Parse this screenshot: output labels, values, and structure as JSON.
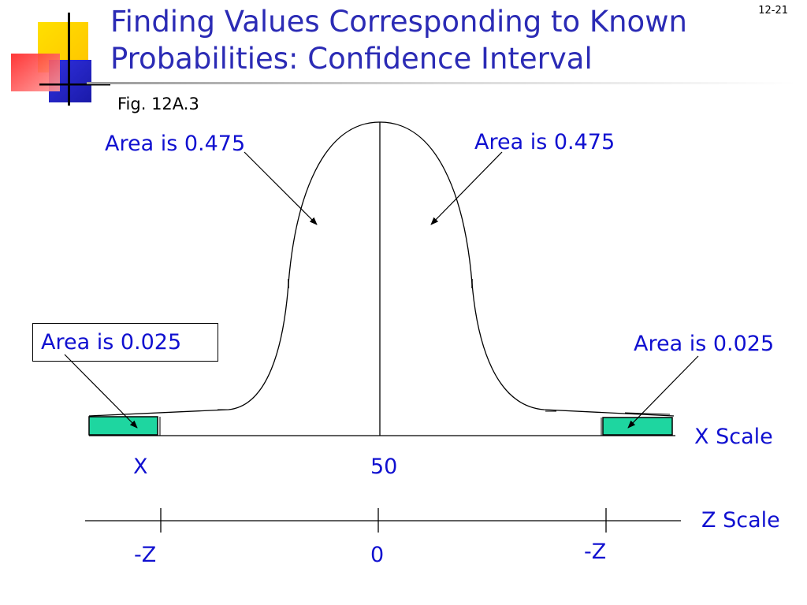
{
  "page_number": "12-21",
  "title": {
    "line1": "Finding Values Corresponding to Known",
    "line2": "Probabilities: Confidence Interval"
  },
  "figure_label": "Fig. 12A.3",
  "labels": {
    "area_left_center": "Area is 0.475",
    "area_right_center": "Area is 0.475",
    "area_left_tail": "Area is 0.025",
    "area_right_tail": "Area is 0.025"
  },
  "x_scale": {
    "name": "X Scale",
    "left_tick": "X",
    "center_tick": "50"
  },
  "z_scale": {
    "name": "Z Scale",
    "left_tick": "-Z",
    "center_tick": "0",
    "right_tick": "-Z"
  },
  "colors": {
    "title": "#2b2bb5",
    "labels": "#1010d0",
    "tail_fill": "#1ed6a0",
    "logo_yellow": "#ffd400",
    "logo_blue": "#2020c8",
    "logo_red": "#ff3030"
  }
}
